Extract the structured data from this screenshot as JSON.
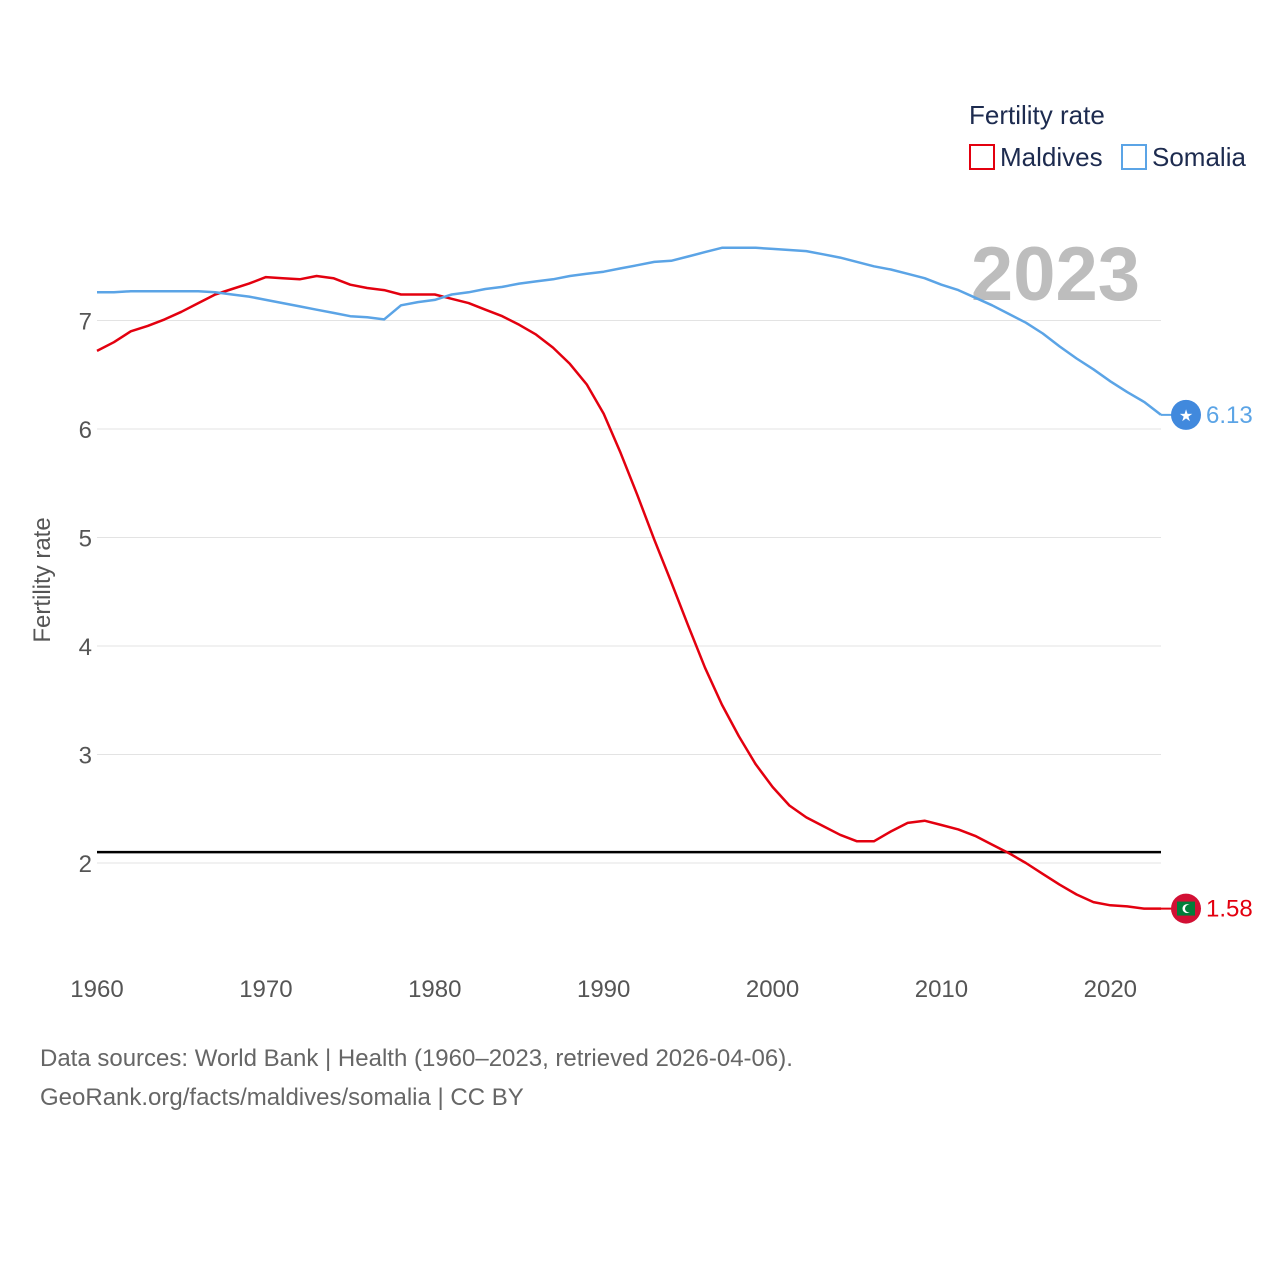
{
  "chart_data": {
    "type": "line",
    "legend_title": "Fertility rate",
    "ylabel": "Fertility rate",
    "year_label": "2023",
    "ylim": [
      1.1,
      7.9
    ],
    "xlim": [
      1960,
      2023
    ],
    "y_ticks": [
      2,
      3,
      4,
      5,
      6,
      7
    ],
    "x_ticks": [
      1960,
      1970,
      1980,
      1990,
      2000,
      2010,
      2020
    ],
    "legend_position": "top-right",
    "reference_line": {
      "value": 2.1,
      "color": "#000000"
    },
    "x": [
      1960,
      1961,
      1962,
      1963,
      1964,
      1965,
      1966,
      1967,
      1968,
      1969,
      1970,
      1971,
      1972,
      1973,
      1974,
      1975,
      1976,
      1977,
      1978,
      1979,
      1980,
      1981,
      1982,
      1983,
      1984,
      1985,
      1986,
      1987,
      1988,
      1989,
      1990,
      1991,
      1992,
      1993,
      1994,
      1995,
      1996,
      1997,
      1998,
      1999,
      2000,
      2001,
      2002,
      2003,
      2004,
      2005,
      2006,
      2007,
      2008,
      2009,
      2010,
      2011,
      2012,
      2013,
      2014,
      2015,
      2016,
      2017,
      2018,
      2019,
      2020,
      2021,
      2022,
      2023
    ],
    "series": [
      {
        "name": "Maldives",
        "color": "#e3000f",
        "end_label": "1.58",
        "flag_icon": "maldives-flag-icon",
        "values": [
          6.72,
          6.8,
          6.9,
          6.95,
          7.01,
          7.08,
          7.16,
          7.24,
          7.29,
          7.34,
          7.4,
          7.39,
          7.38,
          7.41,
          7.39,
          7.33,
          7.3,
          7.28,
          7.24,
          7.24,
          7.24,
          7.2,
          7.16,
          7.1,
          7.04,
          6.96,
          6.87,
          6.75,
          6.6,
          6.41,
          6.14,
          5.78,
          5.39,
          4.98,
          4.59,
          4.19,
          3.8,
          3.46,
          3.17,
          2.91,
          2.7,
          2.53,
          2.42,
          2.34,
          2.26,
          2.2,
          2.2,
          2.29,
          2.37,
          2.39,
          2.35,
          2.31,
          2.25,
          2.17,
          2.09,
          2.0,
          1.9,
          1.8,
          1.71,
          1.64,
          1.61,
          1.6,
          1.58,
          1.58
        ]
      },
      {
        "name": "Somalia",
        "color": "#5ba4e6",
        "end_label": "6.13",
        "flag_icon": "somalia-flag-icon",
        "values": [
          7.26,
          7.26,
          7.27,
          7.27,
          7.27,
          7.27,
          7.27,
          7.26,
          7.24,
          7.22,
          7.19,
          7.16,
          7.13,
          7.1,
          7.07,
          7.04,
          7.03,
          7.01,
          7.14,
          7.17,
          7.19,
          7.24,
          7.26,
          7.29,
          7.31,
          7.34,
          7.36,
          7.38,
          7.41,
          7.43,
          7.45,
          7.48,
          7.51,
          7.54,
          7.55,
          7.59,
          7.63,
          7.67,
          7.67,
          7.67,
          7.66,
          7.65,
          7.64,
          7.61,
          7.58,
          7.54,
          7.5,
          7.47,
          7.43,
          7.39,
          7.33,
          7.28,
          7.21,
          7.14,
          7.06,
          6.98,
          6.88,
          6.76,
          6.65,
          6.55,
          6.44,
          6.34,
          6.25,
          6.13
        ]
      }
    ]
  },
  "footer": {
    "line1": "Data sources: World Bank | Health (1960–2023, retrieved 2026-04-06).",
    "line2": "GeoRank.org/facts/maldives/somalia | CC BY"
  }
}
